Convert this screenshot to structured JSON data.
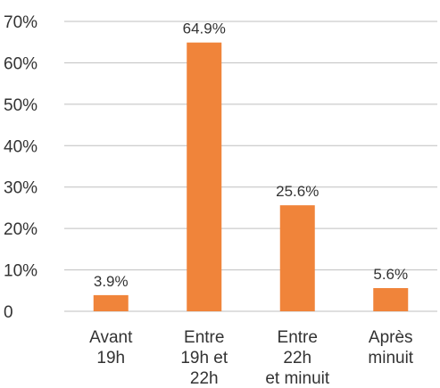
{
  "chart_data": {
    "type": "bar",
    "categories": [
      [
        "Avant",
        "19h"
      ],
      [
        "Entre",
        "19h et",
        "22h"
      ],
      [
        "Entre",
        "22h",
        "et minuit"
      ],
      [
        "Après",
        "minuit"
      ]
    ],
    "values": [
      3.9,
      64.9,
      25.6,
      5.6
    ],
    "data_labels": [
      "3.9%",
      "64.9%",
      "25.6%",
      "5.6%"
    ],
    "y_ticks": [
      0,
      10,
      20,
      30,
      40,
      50,
      60,
      70
    ],
    "y_tick_labels": [
      "0",
      "10%",
      "20%",
      "30%",
      "40%",
      "50%",
      "60%",
      "70%"
    ],
    "ylim": [
      0,
      70
    ],
    "grid": true,
    "bar_color": "#F0843A",
    "grid_color": "#BFBFBF",
    "title": "",
    "xlabel": "",
    "ylabel": ""
  }
}
